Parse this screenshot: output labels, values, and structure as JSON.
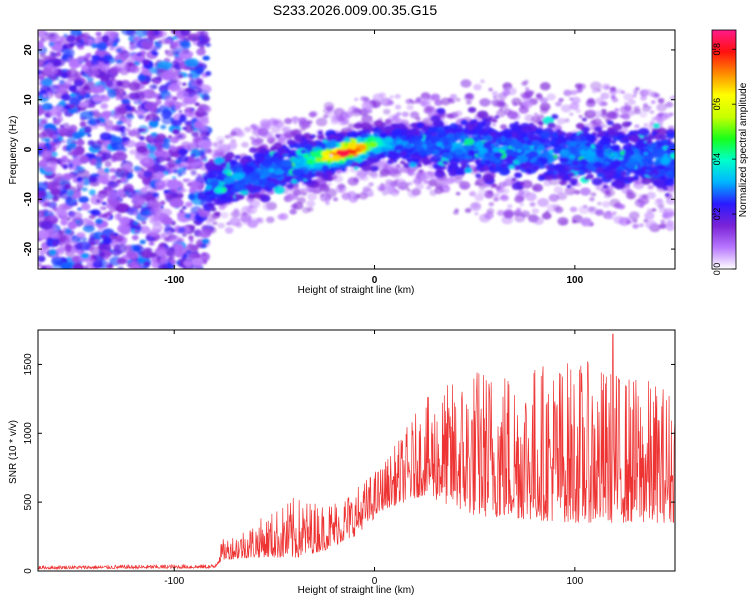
{
  "page": {
    "title": "S233.2026.009.00.35.G15"
  },
  "chart_data": [
    {
      "type": "heatmap",
      "name": "spectrogram",
      "title": "S233.2026.009.00.35.G15",
      "xlabel": "Height of straight line (km)",
      "ylabel": "Frequency (Hz)",
      "xlim": [
        -168,
        150
      ],
      "ylim": [
        -24,
        24
      ],
      "x_ticks": [
        -100,
        0,
        100
      ],
      "y_ticks": [
        -20,
        -10,
        0,
        10,
        20
      ],
      "colorbar": {
        "label": "Normalized spectral amplitude",
        "range": [
          0.0,
          0.87
        ],
        "ticks": [
          "0.0",
          "0.2",
          "0.4",
          "0.6",
          "0.8"
        ],
        "colormap": [
          "#ffffff",
          "#b777ff",
          "#7a22d6",
          "#2a1aff",
          "#00b5ff",
          "#00ffcc",
          "#19ff19",
          "#c8ff00",
          "#ffff00",
          "#ff8a00",
          "#ff1010",
          "#ff1a8a"
        ]
      },
      "noise_region_x": [
        -168,
        -83
      ],
      "ridge": {
        "description_points": [
          {
            "x": -80,
            "y": -7
          },
          {
            "x": -50,
            "y": -4
          },
          {
            "x": -20,
            "y": -1
          },
          {
            "x": 0,
            "y": 1
          },
          {
            "x": 30,
            "y": 1
          },
          {
            "x": 60,
            "y": 0
          },
          {
            "x": 100,
            "y": -1
          },
          {
            "x": 150,
            "y": -2
          }
        ],
        "peak": {
          "x": -15,
          "y": 0,
          "value": 0.87
        }
      }
    },
    {
      "type": "line",
      "name": "snr",
      "xlabel": "Height of straight line (km)",
      "ylabel": "SNR (10 * v/v)",
      "xlim": [
        -168,
        150
      ],
      "ylim": [
        0,
        1750
      ],
      "x_ticks": [
        -100,
        0,
        100
      ],
      "y_ticks": [
        0,
        500,
        1000,
        1500
      ],
      "series": [
        {
          "name": "SNR",
          "color": "#ee3333",
          "envelope": [
            {
              "x": -168,
              "base": 15,
              "amp": 25
            },
            {
              "x": -80,
              "base": 20,
              "amp": 30
            },
            {
              "x": -76,
              "base": 80,
              "amp": 150
            },
            {
              "x": -55,
              "base": 100,
              "amp": 300
            },
            {
              "x": -40,
              "base": 90,
              "amp": 450
            },
            {
              "x": -25,
              "base": 150,
              "amp": 350
            },
            {
              "x": -10,
              "base": 250,
              "amp": 350
            },
            {
              "x": 5,
              "base": 450,
              "amp": 350
            },
            {
              "x": 25,
              "base": 550,
              "amp": 700
            },
            {
              "x": 50,
              "base": 400,
              "amp": 1100
            },
            {
              "x": 100,
              "base": 350,
              "amp": 1200
            },
            {
              "x": 150,
              "base": 350,
              "amp": 1000
            }
          ],
          "max_value": 1720,
          "max_at_x": 119
        }
      ]
    }
  ]
}
